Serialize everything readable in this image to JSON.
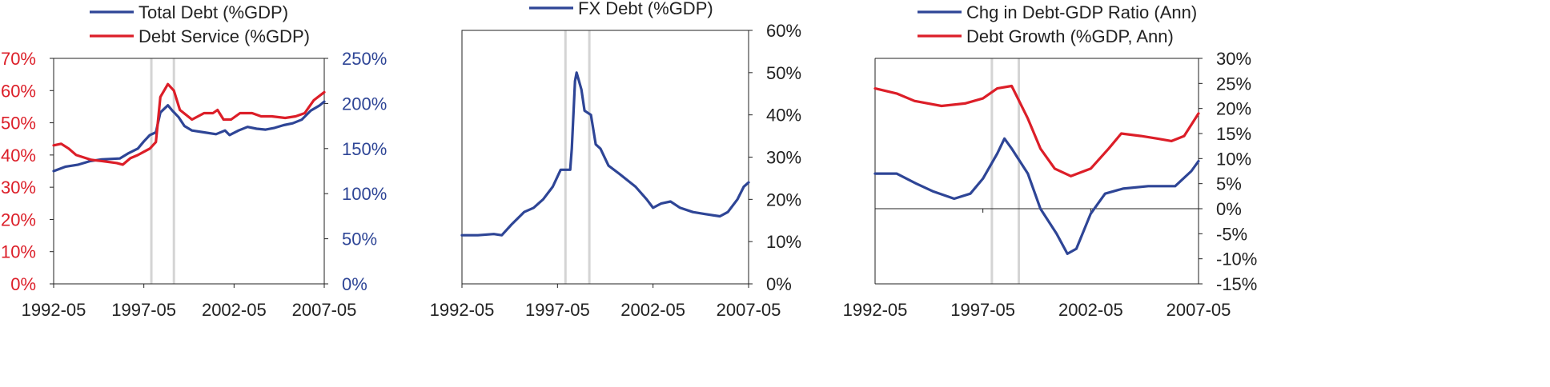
{
  "colors": {
    "blue": "#2e4596",
    "red": "#dc1e28",
    "axis": "#222222",
    "shade": "#d4d4d4"
  },
  "shaded_periods": [
    [
      "1997-07",
      "1998-01"
    ],
    [
      "1998-10",
      "1999-04"
    ]
  ],
  "chart_data": [
    {
      "type": "line",
      "legend": [
        "Total Debt (%GDP)",
        "Debt Service (%GDP)"
      ],
      "x_ticks": [
        "1992-05",
        "1997-05",
        "2002-05",
        "2007-05"
      ],
      "xlim": [
        "1992-05",
        "2007-05"
      ],
      "left_axis": {
        "color": "red",
        "ylim": [
          0,
          70
        ],
        "ticks": [
          "0%",
          "10%",
          "20%",
          "30%",
          "40%",
          "50%",
          "60%",
          "70%"
        ]
      },
      "right_axis": {
        "color": "blue",
        "ylim": [
          0,
          250
        ],
        "ticks": [
          "0%",
          "50%",
          "100%",
          "150%",
          "200%",
          "250%"
        ]
      },
      "series": [
        {
          "name": "Total Debt (%GDP)",
          "axis": "right",
          "color": "blue",
          "points": [
            [
              "1992-05",
              125
            ],
            [
              "1993-01",
              130
            ],
            [
              "1993-09",
              132
            ],
            [
              "1994-05",
              136
            ],
            [
              "1995-01",
              138
            ],
            [
              "1996-01",
              139
            ],
            [
              "1996-07",
              145
            ],
            [
              "1997-01",
              150
            ],
            [
              "1997-05",
              158
            ],
            [
              "1997-09",
              165
            ],
            [
              "1998-01",
              168
            ],
            [
              "1998-04",
              190
            ],
            [
              "1998-09",
              198
            ],
            [
              "1998-12",
              192
            ],
            [
              "1999-04",
              185
            ],
            [
              "1999-08",
              175
            ],
            [
              "2000-01",
              170
            ],
            [
              "2000-09",
              168
            ],
            [
              "2001-05",
              166
            ],
            [
              "2001-11",
              170
            ],
            [
              "2002-02",
              165
            ],
            [
              "2002-08",
              170
            ],
            [
              "2003-02",
              174
            ],
            [
              "2003-08",
              172
            ],
            [
              "2004-02",
              171
            ],
            [
              "2004-08",
              173
            ],
            [
              "2005-02",
              176
            ],
            [
              "2005-08",
              178
            ],
            [
              "2006-02",
              182
            ],
            [
              "2006-08",
              192
            ],
            [
              "2007-02",
              198
            ],
            [
              "2007-05",
              202
            ]
          ]
        },
        {
          "name": "Debt Service (%GDP)",
          "axis": "left",
          "color": "red",
          "points": [
            [
              "1992-05",
              43
            ],
            [
              "1992-10",
              43.5
            ],
            [
              "1993-03",
              42
            ],
            [
              "1993-08",
              40
            ],
            [
              "1994-06",
              38.5
            ],
            [
              "1995-03",
              38
            ],
            [
              "1995-11",
              37.5
            ],
            [
              "1996-03",
              37
            ],
            [
              "1996-08",
              39
            ],
            [
              "1997-01",
              40
            ],
            [
              "1997-05",
              41
            ],
            [
              "1997-09",
              42
            ],
            [
              "1998-01",
              44
            ],
            [
              "1998-04",
              58
            ],
            [
              "1998-09",
              62
            ],
            [
              "1999-01",
              60
            ],
            [
              "1999-05",
              54
            ],
            [
              "2000-01",
              51
            ],
            [
              "2000-09",
              53
            ],
            [
              "2001-03",
              53
            ],
            [
              "2001-06",
              54
            ],
            [
              "2001-10",
              51
            ],
            [
              "2002-03",
              51
            ],
            [
              "2002-09",
              53
            ],
            [
              "2003-05",
              53
            ],
            [
              "2003-11",
              52
            ],
            [
              "2004-06",
              52
            ],
            [
              "2005-03",
              51.5
            ],
            [
              "2005-10",
              52
            ],
            [
              "2006-04",
              53
            ],
            [
              "2006-10",
              57
            ],
            [
              "2007-05",
              59.5
            ]
          ]
        }
      ]
    },
    {
      "type": "line",
      "legend": [
        "FX Debt (%GDP)"
      ],
      "x_ticks": [
        "1992-05",
        "1997-05",
        "2002-05",
        "2007-05"
      ],
      "xlim": [
        "1992-05",
        "2007-05"
      ],
      "right_axis": {
        "color": "axis",
        "ylim": [
          0,
          60
        ],
        "ticks": [
          "0%",
          "10%",
          "20%",
          "30%",
          "40%",
          "50%",
          "60%"
        ]
      },
      "series": [
        {
          "name": "FX Debt (%GDP)",
          "axis": "right",
          "color": "blue",
          "points": [
            [
              "1992-05",
              11.5
            ],
            [
              "1993-03",
              11.5
            ],
            [
              "1994-01",
              11.8
            ],
            [
              "1994-06",
              11.5
            ],
            [
              "1994-12",
              14
            ],
            [
              "1995-08",
              17
            ],
            [
              "1996-02",
              18
            ],
            [
              "1996-08",
              20
            ],
            [
              "1997-02",
              23
            ],
            [
              "1997-07",
              27
            ],
            [
              "1998-01",
              27
            ],
            [
              "1998-02",
              32
            ],
            [
              "1998-04",
              48
            ],
            [
              "1998-05",
              50
            ],
            [
              "1998-08",
              46
            ],
            [
              "1998-10",
              41
            ],
            [
              "1999-02",
              40
            ],
            [
              "1999-05",
              33
            ],
            [
              "1999-08",
              32
            ],
            [
              "2000-01",
              28
            ],
            [
              "2000-08",
              26
            ],
            [
              "2001-06",
              23
            ],
            [
              "2002-01",
              20
            ],
            [
              "2002-05",
              18
            ],
            [
              "2002-10",
              19
            ],
            [
              "2003-04",
              19.5
            ],
            [
              "2003-10",
              18
            ],
            [
              "2004-06",
              17
            ],
            [
              "2005-02",
              16.5
            ],
            [
              "2005-11",
              16
            ],
            [
              "2006-04",
              17
            ],
            [
              "2006-10",
              20
            ],
            [
              "2007-02",
              23
            ],
            [
              "2007-05",
              24
            ]
          ]
        }
      ]
    },
    {
      "type": "line",
      "legend": [
        "Chg in Debt-GDP Ratio (Ann)",
        "Debt Growth (%GDP, Ann)"
      ],
      "x_ticks": [
        "1992-05",
        "1997-05",
        "2002-05",
        "2007-05"
      ],
      "xlim": [
        "1992-05",
        "2007-05"
      ],
      "right_axis": {
        "color": "axis",
        "ylim": [
          -15,
          30
        ],
        "ticks": [
          "-15%",
          "-10%",
          "-5%",
          "0%",
          "5%",
          "10%",
          "15%",
          "20%",
          "25%",
          "30%"
        ]
      },
      "series": [
        {
          "name": "Chg in Debt-GDP Ratio (Ann)",
          "axis": "right",
          "color": "blue",
          "points": [
            [
              "1992-05",
              7
            ],
            [
              "1993-05",
              7
            ],
            [
              "1994-04",
              5
            ],
            [
              "1995-01",
              3.5
            ],
            [
              "1996-01",
              2
            ],
            [
              "1996-10",
              3
            ],
            [
              "1997-05",
              6
            ],
            [
              "1998-01",
              11
            ],
            [
              "1998-05",
              14
            ],
            [
              "1998-09",
              12
            ],
            [
              "1999-06",
              7
            ],
            [
              "2000-01",
              0
            ],
            [
              "2000-10",
              -5
            ],
            [
              "2001-04",
              -9
            ],
            [
              "2001-09",
              -8
            ],
            [
              "2002-05",
              -1
            ],
            [
              "2003-01",
              3
            ],
            [
              "2003-11",
              4
            ],
            [
              "2005-01",
              4.5
            ],
            [
              "2006-04",
              4.5
            ],
            [
              "2007-01",
              7.5
            ],
            [
              "2007-05",
              9.5
            ]
          ]
        },
        {
          "name": "Debt Growth (%GDP, Ann)",
          "axis": "right",
          "color": "red",
          "points": [
            [
              "1992-05",
              24
            ],
            [
              "1993-05",
              23
            ],
            [
              "1994-03",
              21.5
            ],
            [
              "1995-06",
              20.5
            ],
            [
              "1996-07",
              21
            ],
            [
              "1997-05",
              22
            ],
            [
              "1998-01",
              24
            ],
            [
              "1998-09",
              24.5
            ],
            [
              "1999-06",
              18
            ],
            [
              "2000-01",
              12
            ],
            [
              "2000-09",
              8
            ],
            [
              "2001-06",
              6.5
            ],
            [
              "2002-05",
              8
            ],
            [
              "2003-03",
              12
            ],
            [
              "2003-10",
              15
            ],
            [
              "2004-09",
              14.5
            ],
            [
              "2005-06",
              14
            ],
            [
              "2006-02",
              13.5
            ],
            [
              "2006-09",
              14.5
            ],
            [
              "2007-05",
              19
            ]
          ]
        }
      ]
    }
  ]
}
